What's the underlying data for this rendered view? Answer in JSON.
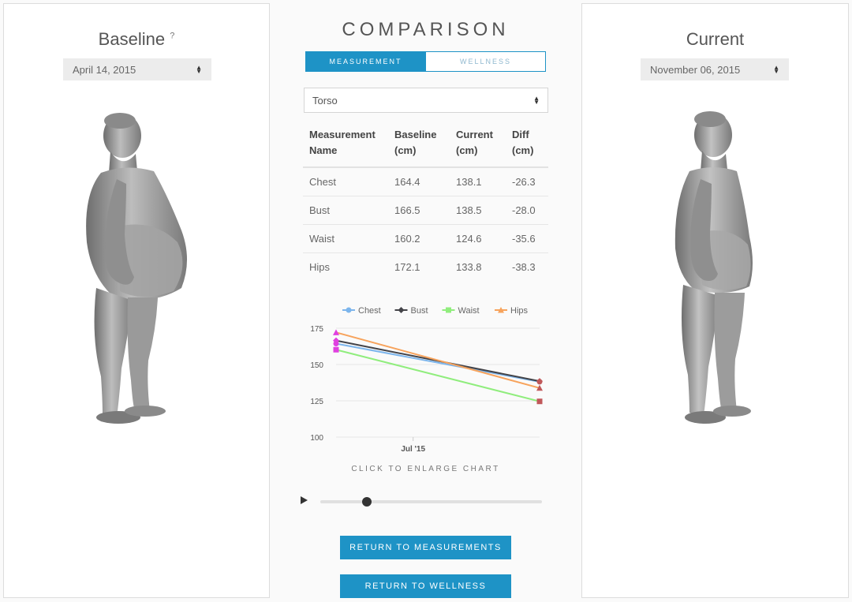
{
  "baseline": {
    "title": "Baseline",
    "help_mark": "?",
    "date": "April 14, 2015"
  },
  "current": {
    "title": "Current",
    "date": "November 06, 2015"
  },
  "comparison": {
    "title": "COMPARISON",
    "tabs": [
      {
        "label": "MEASUREMENT",
        "active": true
      },
      {
        "label": "WELLNESS",
        "active": false
      }
    ],
    "region": "Torso",
    "table": {
      "headers": [
        [
          "Measurement",
          "Name"
        ],
        [
          "Baseline",
          "(cm)"
        ],
        [
          "Current",
          "(cm)"
        ],
        [
          "Diff",
          "(cm)"
        ]
      ],
      "rows": [
        [
          "Chest",
          "164.4",
          "138.1",
          "-26.3"
        ],
        [
          "Bust",
          "166.5",
          "138.5",
          "-28.0"
        ],
        [
          "Waist",
          "160.2",
          "124.6",
          "-35.6"
        ],
        [
          "Hips",
          "172.1",
          "133.8",
          "-38.3"
        ]
      ]
    },
    "enlarge_label": "CLICK TO ENLARGE CHART",
    "slider_position": 0.21,
    "buttons": {
      "return_measurements": "RETURN TO MEASUREMENTS",
      "return_wellness": "RETURN TO WELLNESS"
    }
  },
  "chart_data": {
    "type": "line",
    "x": [
      "2015-04-14",
      "2015-11-06"
    ],
    "x_ticks": [
      {
        "date": "2015-07-01",
        "label": "Jul '15"
      }
    ],
    "ylim": [
      100,
      175
    ],
    "y_ticks": [
      175,
      150,
      125,
      100
    ],
    "grid": true,
    "legend_position": "top",
    "series": [
      {
        "name": "Chest",
        "values": [
          164.4,
          138.1
        ],
        "color": "#7cb5ec",
        "marker": "circle"
      },
      {
        "name": "Bust",
        "values": [
          166.5,
          138.5
        ],
        "color": "#434348",
        "marker": "diamond"
      },
      {
        "name": "Waist",
        "values": [
          160.2,
          124.6
        ],
        "color": "#90ed7d",
        "marker": "square"
      },
      {
        "name": "Hips",
        "values": [
          172.1,
          133.8
        ],
        "color": "#f7a35c",
        "marker": "triangle"
      }
    ],
    "start_marker_color": "#e040e0",
    "end_marker_color": "#c0585a"
  }
}
